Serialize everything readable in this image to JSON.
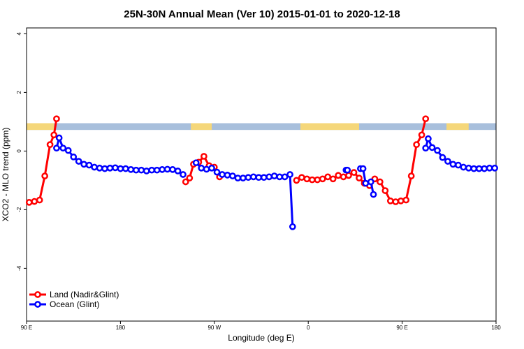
{
  "chart_data": {
    "type": "line",
    "title": "25N-30N Annual Mean (Ver 10)   2015-01-01 to 2020-12-18",
    "xlabel": "Longitude (deg E)",
    "ylabel": "XCO2 - MLO trend (ppm)",
    "xlim": [
      90,
      450
    ],
    "ylim": [
      -5.8,
      4.2
    ],
    "x_ticks": [
      {
        "value": 90,
        "label": "90 E"
      },
      {
        "value": 162,
        "label": "180"
      },
      {
        "value": 234,
        "label": "90 W"
      },
      {
        "value": 306,
        "label": "0"
      },
      {
        "value": 378,
        "label": "90 E"
      },
      {
        "value": 450,
        "label": "180"
      }
    ],
    "y_ticks": [
      {
        "value": 4,
        "label": "4"
      },
      {
        "value": 2,
        "label": "2"
      },
      {
        "value": 0,
        "label": "0"
      },
      {
        "value": -2,
        "label": "-2"
      },
      {
        "value": -4,
        "label": "-4"
      }
    ],
    "land_ocean_band": {
      "y_top": 0.95,
      "y_bottom": 0.72,
      "ocean_color": "#a8bfdc",
      "land_color": "#f5d77a",
      "land_segments": [
        [
          90,
          111
        ],
        [
          216,
          232
        ],
        [
          300,
          345
        ],
        [
          412,
          429
        ]
      ]
    },
    "legend_position": "bottom-left",
    "series": [
      {
        "name": "Land (Nadir&Glint)",
        "color": "#ff0000",
        "segments": [
          [
            [
              92,
              -1.75
            ],
            [
              96,
              -1.72
            ],
            [
              100,
              -1.67
            ],
            [
              104,
              -0.85
            ],
            [
              108,
              0.22
            ],
            [
              111,
              0.55
            ],
            [
              113,
              1.1
            ]
          ],
          [
            [
              212,
              -1.05
            ],
            [
              215,
              -0.92
            ],
            [
              218,
              -0.45
            ],
            [
              222,
              -0.38
            ],
            [
              226,
              -0.18
            ],
            [
              230,
              -0.5
            ],
            [
              234,
              -0.55
            ],
            [
              238,
              -0.88
            ]
          ],
          [
            [
              297,
              -1.0
            ],
            [
              301,
              -0.9
            ],
            [
              305,
              -0.95
            ],
            [
              309,
              -0.98
            ],
            [
              313,
              -0.98
            ],
            [
              317,
              -0.95
            ],
            [
              321,
              -0.88
            ],
            [
              325,
              -0.95
            ],
            [
              329,
              -0.83
            ],
            [
              333,
              -0.88
            ],
            [
              337,
              -0.83
            ],
            [
              341,
              -0.73
            ],
            [
              345,
              -0.92
            ],
            [
              349,
              -1.1
            ],
            [
              353,
              -1.18
            ],
            [
              357,
              -0.95
            ],
            [
              361,
              -1.05
            ],
            [
              365,
              -1.35
            ],
            [
              369,
              -1.7
            ],
            [
              373,
              -1.73
            ],
            [
              377,
              -1.7
            ],
            [
              381,
              -1.67
            ],
            [
              385,
              -0.85
            ],
            [
              389,
              0.22
            ],
            [
              393,
              0.55
            ],
            [
              396,
              1.1
            ]
          ]
        ]
      },
      {
        "name": "Ocean (Glint)",
        "color": "#0000ff",
        "segments": [
          [
            [
              113,
              0.1
            ],
            [
              115,
              0.45
            ],
            [
              118,
              0.1
            ],
            [
              122,
              0.02
            ],
            [
              126,
              -0.2
            ],
            [
              130,
              -0.35
            ],
            [
              134,
              -0.45
            ],
            [
              138,
              -0.48
            ],
            [
              142,
              -0.55
            ],
            [
              146,
              -0.58
            ],
            [
              150,
              -0.6
            ],
            [
              154,
              -0.58
            ],
            [
              158,
              -0.57
            ],
            [
              162,
              -0.6
            ],
            [
              166,
              -0.6
            ],
            [
              170,
              -0.63
            ],
            [
              174,
              -0.65
            ],
            [
              178,
              -0.65
            ],
            [
              182,
              -0.68
            ],
            [
              186,
              -0.65
            ],
            [
              190,
              -0.65
            ],
            [
              194,
              -0.63
            ],
            [
              198,
              -0.62
            ],
            [
              202,
              -0.63
            ],
            [
              206,
              -0.68
            ],
            [
              210,
              -0.8
            ]
          ],
          [
            [
              220,
              -0.4
            ],
            [
              224,
              -0.58
            ],
            [
              228,
              -0.62
            ],
            [
              232,
              -0.58
            ],
            [
              236,
              -0.72
            ],
            [
              240,
              -0.8
            ],
            [
              244,
              -0.82
            ],
            [
              248,
              -0.85
            ],
            [
              252,
              -0.92
            ],
            [
              256,
              -0.92
            ],
            [
              260,
              -0.9
            ],
            [
              264,
              -0.88
            ],
            [
              268,
              -0.9
            ],
            [
              272,
              -0.9
            ],
            [
              276,
              -0.88
            ],
            [
              280,
              -0.85
            ],
            [
              284,
              -0.88
            ],
            [
              288,
              -0.88
            ],
            [
              292,
              -0.8
            ],
            [
              294,
              -2.58
            ]
          ],
          [
            [
              335,
              -0.65
            ],
            [
              336,
              -0.65
            ]
          ],
          [
            [
              346,
              -0.6
            ],
            [
              348,
              -0.6
            ],
            [
              350,
              -1.1
            ],
            [
              354,
              -1.05
            ],
            [
              356,
              -1.48
            ]
          ],
          [
            [
              396,
              0.1
            ],
            [
              398,
              0.42
            ],
            [
              401,
              0.12
            ],
            [
              405,
              0.02
            ],
            [
              409,
              -0.22
            ],
            [
              413,
              -0.35
            ],
            [
              417,
              -0.45
            ],
            [
              421,
              -0.48
            ],
            [
              425,
              -0.55
            ],
            [
              429,
              -0.58
            ],
            [
              433,
              -0.6
            ],
            [
              437,
              -0.6
            ],
            [
              441,
              -0.6
            ],
            [
              445,
              -0.58
            ],
            [
              449,
              -0.58
            ]
          ]
        ]
      }
    ]
  }
}
